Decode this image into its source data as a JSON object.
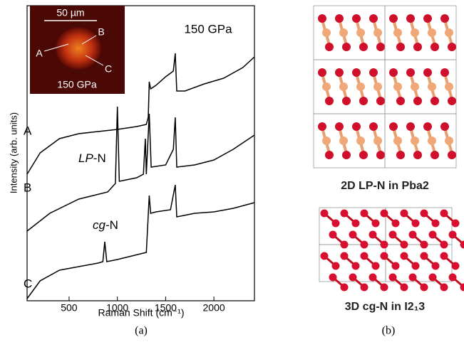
{
  "chart_data": {
    "type": "line",
    "x_label": "Raman Shift (cm⁻¹)",
    "y_label": "Intensity (arb. units)",
    "xlim": [
      65,
      2420
    ],
    "ylim": [
      0,
      415
    ],
    "xticks": [
      500,
      1000,
      1500,
      2000
    ],
    "pressure": "150 GPa",
    "series": [
      {
        "name": "A",
        "color": "#000000",
        "x": [
          65,
          200,
          400,
          600,
          800,
          1000,
          1200,
          1300,
          1320,
          1330,
          1345,
          1400,
          1500,
          1580,
          1600,
          1615,
          1700,
          1900,
          2100,
          2300,
          2420
        ],
        "values": [
          178,
          208,
          228,
          235,
          238,
          241,
          245,
          248,
          258,
          308,
          298,
          303,
          315,
          323,
          348,
          295,
          295,
          305,
          313,
          328,
          343
        ]
      },
      {
        "name": "B",
        "color": "#000000",
        "x": [
          65,
          300,
          600,
          900,
          980,
          1000,
          1020,
          1200,
          1270,
          1290,
          1300,
          1330,
          1350,
          1500,
          1580,
          1600,
          1615,
          1800,
          2000,
          2200,
          2420
        ],
        "values": [
          98,
          123,
          143,
          153,
          165,
          273,
          168,
          173,
          178,
          228,
          178,
          263,
          188,
          191,
          213,
          258,
          188,
          191,
          198,
          213,
          233
        ]
      },
      {
        "name": "C",
        "color": "#000000",
        "x": [
          65,
          200,
          400,
          600,
          800,
          850,
          870,
          890,
          1000,
          1300,
          1330,
          1345,
          1400,
          1550,
          1600,
          1615,
          1800,
          2000,
          2200,
          2420
        ],
        "values": [
          3,
          28,
          43,
          48,
          53,
          55,
          83,
          55,
          58,
          68,
          148,
          123,
          125,
          128,
          163,
          118,
          123,
          125,
          130,
          138
        ]
      }
    ],
    "annotations": [
      {
        "italic": "LP",
        "text": "-N"
      },
      {
        "italic": "cg",
        "text": "-N"
      }
    ],
    "inset": {
      "scale": "50 µm",
      "points": [
        "A",
        "B",
        "C"
      ],
      "pressure": "150 GPa"
    },
    "panel_label": "(a)"
  },
  "structures": {
    "top_label": "2D LP-N in Pba2",
    "bottom_label": "3D cg-N in I2₁3",
    "panel_label": "(b)"
  }
}
